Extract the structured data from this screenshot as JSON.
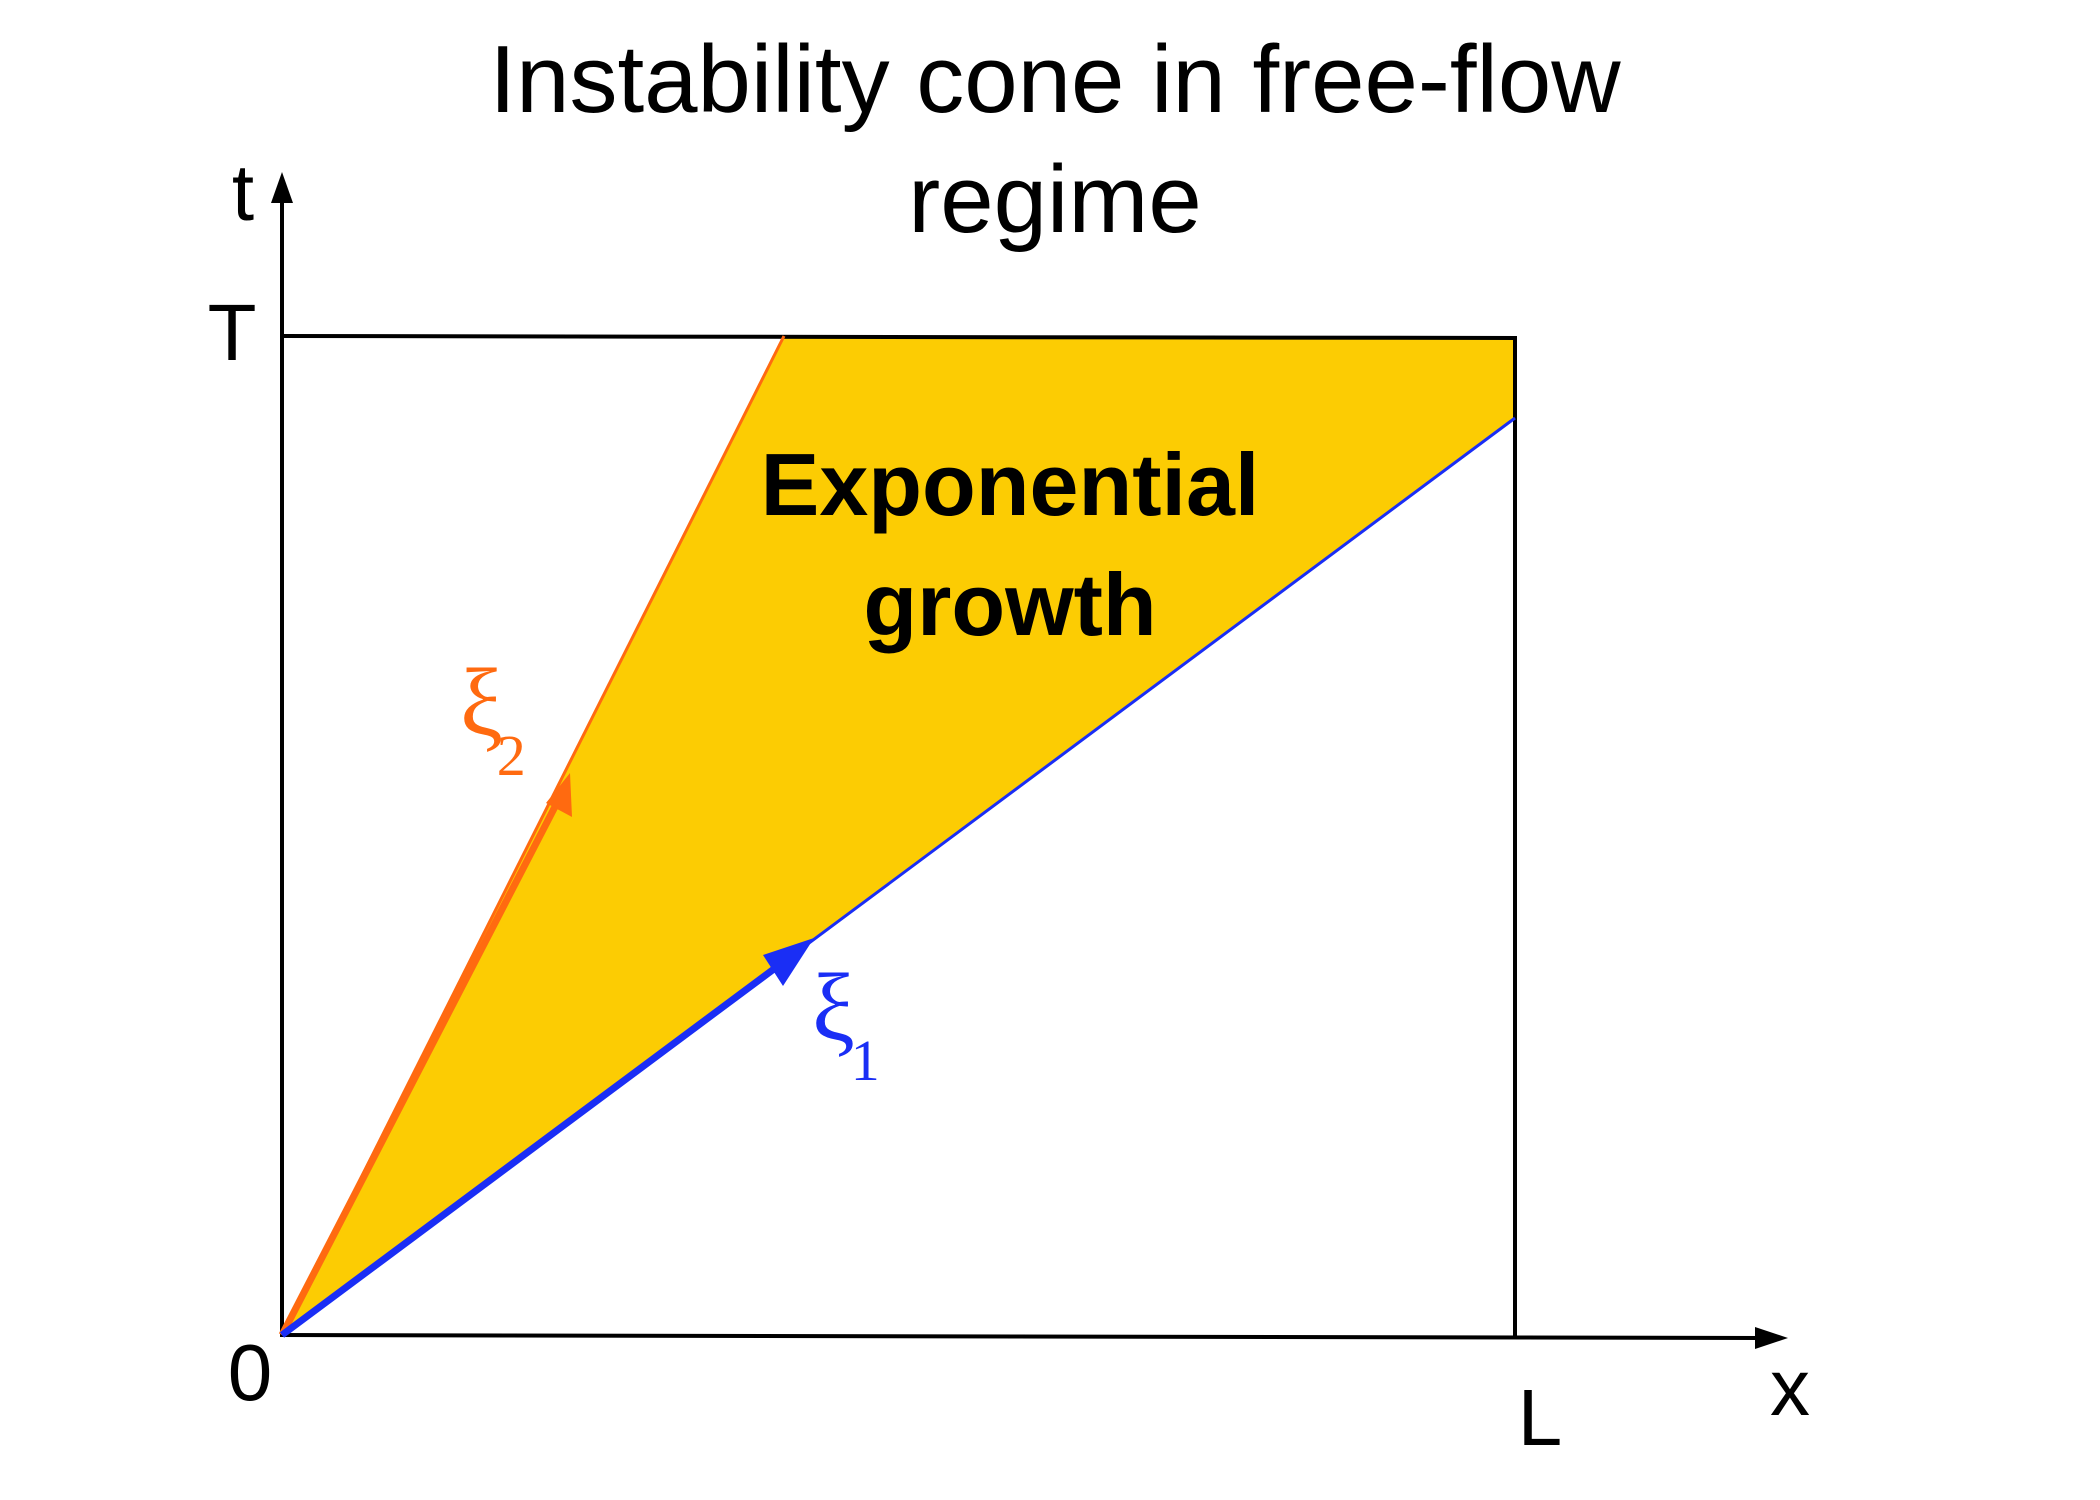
{
  "title_line1": "Instability cone in free-flow",
  "title_line2": "regime",
  "axes": {
    "t_label": "t",
    "x_label": "x",
    "T_label": "T",
    "origin_label": "0",
    "L_label": "L"
  },
  "region": {
    "label_line1": "Exponential",
    "label_line2": "growth",
    "fill_color": "#FCCC03"
  },
  "characteristics": {
    "xi1": {
      "symbol": "ξ",
      "subscript": "1",
      "color": "#1A2EF5"
    },
    "xi2": {
      "symbol": "ξ",
      "subscript": "2",
      "color": "#FF6A10"
    }
  }
}
